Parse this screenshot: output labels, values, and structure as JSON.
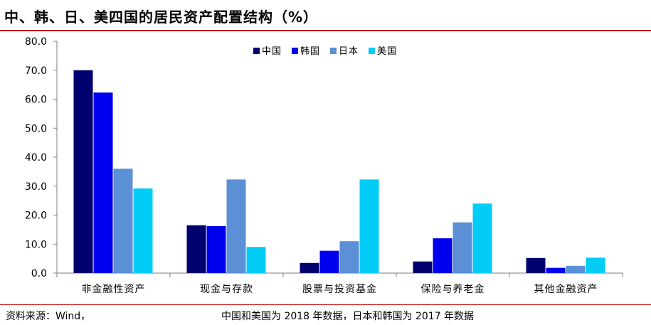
{
  "title": "中、韩、日、美四国的居民资产配置结构（%）",
  "source": {
    "label": "资料来源：Wind，",
    "note": "中国和美国为 2018 年数据，日本和韩国为 2017 年数据"
  },
  "chart_data": {
    "type": "bar",
    "categories": [
      "非金融性资产",
      "现金与存款",
      "股票与投资基金",
      "保险与养老金",
      "其他金融资产"
    ],
    "series": [
      {
        "name": "中国",
        "color": "#00006e",
        "values": [
          70.0,
          16.5,
          3.5,
          4.0,
          5.2
        ]
      },
      {
        "name": "韩国",
        "color": "#0000ee",
        "values": [
          62.3,
          16.2,
          7.7,
          12.0,
          1.8
        ]
      },
      {
        "name": "日本",
        "color": "#5b8fd6",
        "values": [
          36.0,
          32.3,
          11.0,
          17.5,
          2.5
        ]
      },
      {
        "name": "美国",
        "color": "#00ccf5",
        "values": [
          29.2,
          9.0,
          32.3,
          24.0,
          5.3
        ]
      }
    ],
    "ylim": [
      0,
      80
    ],
    "yticks": [
      "0.0",
      "10.0",
      "20.0",
      "30.0",
      "40.0",
      "50.0",
      "60.0",
      "70.0",
      "80.0"
    ],
    "legend_position": "top-center",
    "grid": false
  }
}
